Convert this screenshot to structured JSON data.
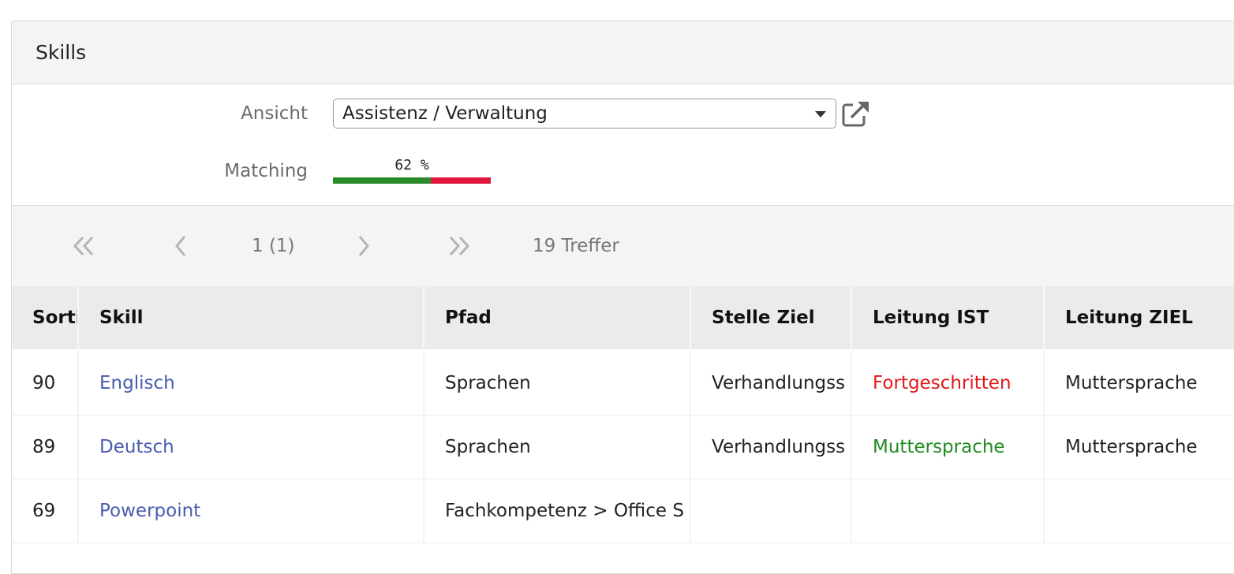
{
  "panel": {
    "title": "Skills"
  },
  "form": {
    "view_label": "Ansicht",
    "view_value": "Assistenz / Verwaltung",
    "matching_label": "Matching",
    "matching_text": "62 %",
    "matching_percent": 62,
    "colors": {
      "match": "#2a8c2a",
      "mismatch": "#e0163f"
    }
  },
  "pager": {
    "page_text": "1 (1)",
    "hits_text": "19 Treffer"
  },
  "table": {
    "headers": [
      "Sorti",
      "Skill",
      "Pfad",
      "Stelle Ziel",
      "Leitung IST",
      "Leitung ZIEL"
    ],
    "rows": [
      {
        "sort": "90",
        "skill": "Englisch",
        "path": "Sprachen",
        "stelle_ziel": "Verhandlungss",
        "leitung_ist": "Fortgeschritten",
        "leitung_ist_status": "below",
        "leitung_ziel": "Muttersprache"
      },
      {
        "sort": "89",
        "skill": "Deutsch",
        "path": "Sprachen",
        "stelle_ziel": "Verhandlungss",
        "leitung_ist": "Muttersprache",
        "leitung_ist_status": "met",
        "leitung_ziel": "Muttersprache"
      },
      {
        "sort": "69",
        "skill": "Powerpoint",
        "path": "Fachkompetenz > Office S",
        "stelle_ziel": "",
        "leitung_ist": "",
        "leitung_ist_status": "",
        "leitung_ziel": ""
      }
    ]
  }
}
